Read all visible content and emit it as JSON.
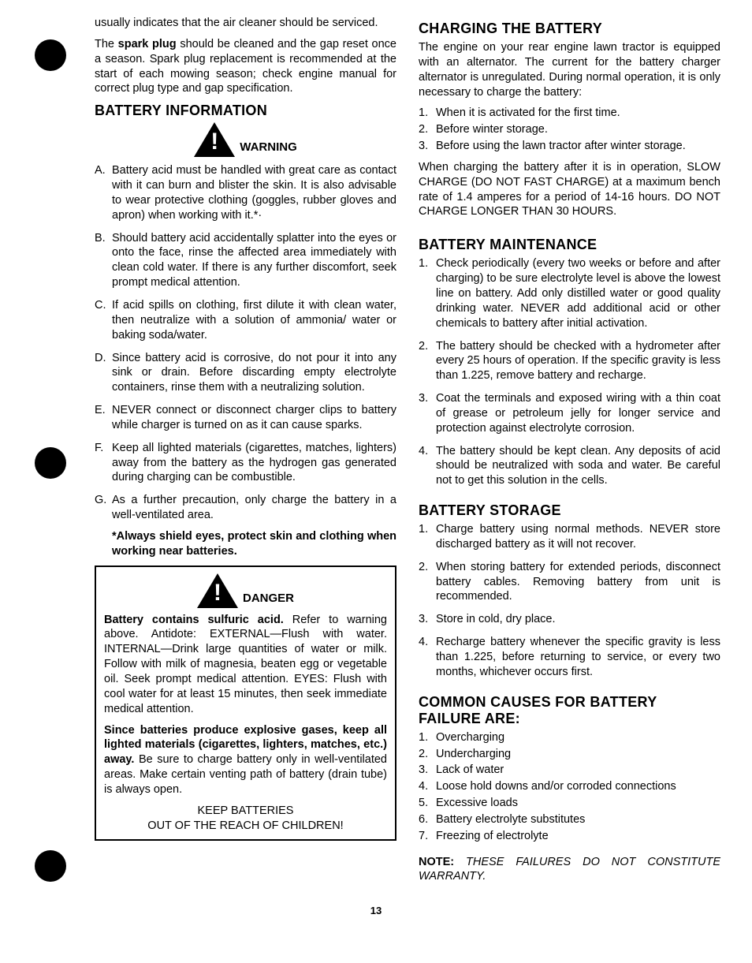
{
  "dots": {
    "top1": 30,
    "top2": 547,
    "top3": 1058
  },
  "left": {
    "intro1": "usually indicates that the air cleaner should be serviced.",
    "intro2_pre": "The ",
    "intro2_bold": "spark plug",
    "intro2_post": " should be cleaned and the gap reset once a season. Spark plug replacement is recommended at the start of each mowing season; check engine manual for correct plug type and gap specification.",
    "h_battery_info": "BATTERY INFORMATION",
    "warning_label": "WARNING",
    "letters": [
      "Battery acid must be handled with great care as contact with it can burn and blister the skin. It is also advisable to wear protective clothing (goggles, rubber gloves and apron) when working with it.*·",
      "Should battery acid accidentally splatter into the eyes or onto the face, rinse the affected area immediately with clean cold water. If there is any further discomfort, seek prompt medical attention.",
      "If acid spills on clothing, first dilute it with clean water, then neutralize with a solution of ammonia/ water or baking soda/water.",
      "Since battery acid is corrosive, do not pour it into any sink or drain. Before discarding empty electrolyte containers, rinse them with a neutralizing solution.",
      "NEVER connect or disconnect charger clips to battery while charger is turned on as it can cause sparks.",
      "Keep all lighted materials (cigarettes, matches, lighters) away from the battery as the hydrogen gas generated during charging can be combustible.",
      "As a further precaution, only charge the battery in a well-ventilated area."
    ],
    "letters_labels": [
      "A.",
      "B.",
      "C.",
      "D.",
      "E.",
      "F.",
      "G."
    ],
    "shield_note": "*Always shield eyes, protect skin and clothing when working near batteries.",
    "danger_label": "DANGER",
    "danger_p1_lead": "Battery contains sulfuric acid.",
    "danger_p1_rest": " Refer to warning above. Antidote: EXTERNAL—Flush with water. INTERNAL—Drink large quantities of water or milk. Follow with milk of magnesia, beaten egg or vegetable oil. Seek prompt medical attention. EYES: Flush with cool water for at least 15 minutes, then seek immediate medical attention.",
    "danger_p2_lead": "Since batteries produce explosive gases, keep all lighted materials (cigarettes, lighters, matches, etc.) away.",
    "danger_p2_rest": " Be sure to charge battery only in well-ventilated areas. Make certain venting path of battery (drain tube) is always open.",
    "keep1": "KEEP BATTERIES",
    "keep2": "OUT OF THE REACH OF CHILDREN!"
  },
  "right": {
    "h_charging": "CHARGING THE BATTERY",
    "charging_intro": "The engine on your rear engine lawn tractor is equipped with an alternator. The current for the battery charger alternator is unregulated. During normal operation, it is only necessary to charge the battery:",
    "charging_list": [
      "When it is activated for the first time.",
      "Before winter storage.",
      "Before using the lawn tractor after winter storage."
    ],
    "charging_p2": "When charging the battery after it is in operation, SLOW CHARGE (DO NOT FAST CHARGE) at a maximum bench rate of 1.4 amperes for a period of 14-16 hours. DO NOT CHARGE LONGER THAN 30 HOURS.",
    "h_maint": "BATTERY MAINTENANCE",
    "maint_list": [
      "Check periodically (every two weeks or before and after charging) to be sure electrolyte level is above the lowest line on battery. Add only distilled water or good quality drinking water. NEVER add additional acid or other chemicals to battery after initial activation.",
      "The battery should be checked with a hydrometer after every 25 hours of operation. If the specific gravity is less than 1.225, remove battery and recharge.",
      "Coat the terminals and exposed wiring with a thin coat of grease or petroleum jelly for longer service and protection against electrolyte corrosion.",
      "The battery should be kept clean. Any deposits of acid should be neutralized with soda and water. Be careful not to get this solution in the cells."
    ],
    "h_storage": "BATTERY STORAGE",
    "storage_list": [
      "Charge battery using normal methods. NEVER store discharged battery as it will not recover.",
      "When storing battery for extended periods, disconnect battery cables. Removing battery from unit is recommended.",
      "Store in cold, dry place.",
      "Recharge battery whenever the specific gravity is less than 1.225, before returning to service, or every two months, whichever occurs first."
    ],
    "h_causes": "COMMON CAUSES FOR BATTERY FAILURE ARE:",
    "causes_list": [
      "Overcharging",
      "Undercharging",
      "Lack of water",
      "Loose hold downs and/or corroded connections",
      "Excessive loads",
      "Battery electrolyte substitutes",
      "Freezing of electrolyte"
    ],
    "note_bold": "NOTE:",
    "note_italic": " THESE FAILURES DO NOT CONSTITUTE WARRANTY."
  },
  "page_number": "13"
}
